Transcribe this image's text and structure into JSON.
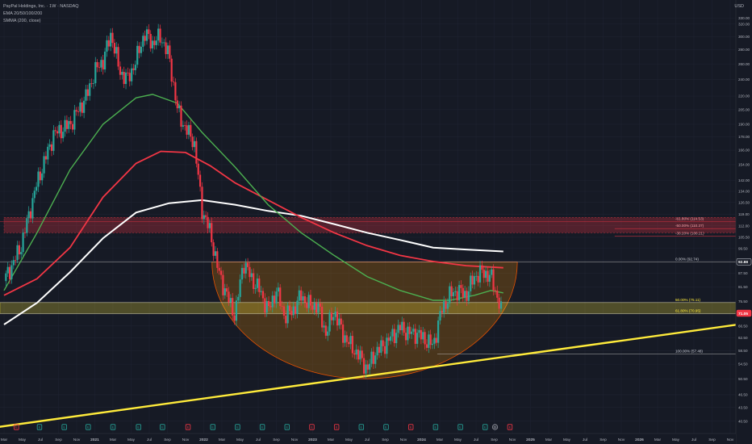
{
  "header": {
    "title": "PayPal Holdings, Inc. · 1W · NASDAQ",
    "indicator_1": "EMA 20/50/100/200",
    "indicator_2": "SMMA (200, close)",
    "currency": "USD"
  },
  "chart_data": {
    "type": "candlestick",
    "title": "PayPal Holdings, Inc. · 1W · NASDAQ",
    "y_scale": "log",
    "ylim": [
      38.8,
      342
    ],
    "y_ticks": [
      330.0,
      320.0,
      300.0,
      280.0,
      260.0,
      240.0,
      220.0,
      205.0,
      190.0,
      178.0,
      166.0,
      154.0,
      142.0,
      134.0,
      126.5,
      119.0,
      112.0,
      105.5,
      99.5,
      93.5,
      87.5,
      81.5,
      75.5,
      70.5,
      66.5,
      62.5,
      58.5,
      54.5,
      50.5,
      46.5,
      43.5,
      40.5
    ],
    "x_ticks": [
      "Mar",
      "May",
      "Jul",
      "Sep",
      "Nov",
      "2021",
      "Mar",
      "May",
      "Jul",
      "Sep",
      "Nov",
      "2022",
      "Mar",
      "May",
      "Jul",
      "Sep",
      "Nov",
      "2023",
      "Mar",
      "May",
      "Jul",
      "Sep",
      "Nov",
      "2024",
      "Mar",
      "May",
      "Jul",
      "Sep",
      "Nov",
      "2025",
      "Mar",
      "May",
      "Jul",
      "Sep",
      "Nov",
      "2026",
      "Mar",
      "May",
      "Jul",
      "Sep",
      "Nov"
    ],
    "x_domain_months": [
      0,
      88
    ],
    "ohlc_anchors": [
      {
        "m": 0,
        "c": 84
      },
      {
        "m": 2,
        "c": 100
      },
      {
        "m": 4,
        "c": 140
      },
      {
        "m": 6,
        "c": 180
      },
      {
        "m": 8,
        "c": 190
      },
      {
        "m": 10,
        "c": 220
      },
      {
        "m": 11,
        "c": 250
      },
      {
        "m": 12,
        "c": 265
      },
      {
        "m": 13,
        "c": 305
      },
      {
        "m": 14,
        "c": 250
      },
      {
        "m": 15,
        "c": 240
      },
      {
        "m": 16,
        "c": 265
      },
      {
        "m": 17,
        "c": 305
      },
      {
        "m": 18,
        "c": 290
      },
      {
        "m": 19,
        "c": 300
      },
      {
        "m": 20,
        "c": 270
      },
      {
        "m": 21,
        "c": 205
      },
      {
        "m": 22,
        "c": 185
      },
      {
        "m": 23,
        "c": 175
      },
      {
        "m": 24,
        "c": 122
      },
      {
        "m": 25,
        "c": 108
      },
      {
        "m": 26,
        "c": 88
      },
      {
        "m": 27,
        "c": 78
      },
      {
        "m": 28,
        "c": 70
      },
      {
        "m": 29,
        "c": 93
      },
      {
        "m": 30,
        "c": 85
      },
      {
        "m": 31,
        "c": 80
      },
      {
        "m": 32,
        "c": 72
      },
      {
        "m": 33,
        "c": 80
      },
      {
        "m": 34,
        "c": 70
      },
      {
        "m": 35,
        "c": 72
      },
      {
        "m": 36,
        "c": 78
      },
      {
        "m": 37,
        "c": 74
      },
      {
        "m": 38,
        "c": 74
      },
      {
        "m": 39,
        "c": 64
      },
      {
        "m": 40,
        "c": 72
      },
      {
        "m": 41,
        "c": 64
      },
      {
        "m": 42,
        "c": 60
      },
      {
        "m": 43,
        "c": 57
      },
      {
        "m": 44,
        "c": 53
      },
      {
        "m": 45,
        "c": 58
      },
      {
        "m": 46,
        "c": 60
      },
      {
        "m": 47,
        "c": 63
      },
      {
        "m": 48,
        "c": 66
      },
      {
        "m": 49,
        "c": 64
      },
      {
        "m": 50,
        "c": 64
      },
      {
        "m": 51,
        "c": 62
      },
      {
        "m": 52,
        "c": 60
      },
      {
        "m": 53,
        "c": 72
      },
      {
        "m": 54,
        "c": 78
      },
      {
        "m": 55,
        "c": 80
      },
      {
        "m": 56,
        "c": 78
      },
      {
        "m": 57,
        "c": 86
      },
      {
        "m": 58,
        "c": 88
      },
      {
        "m": 59,
        "c": 86
      },
      {
        "m": 60,
        "c": 75
      },
      {
        "m": 60.3,
        "c": 71.05
      }
    ],
    "ema_50_green": [
      {
        "m": 0,
        "v": 80
      },
      {
        "m": 4,
        "v": 108
      },
      {
        "m": 8,
        "v": 150
      },
      {
        "m": 12,
        "v": 190
      },
      {
        "m": 16,
        "v": 218
      },
      {
        "m": 18,
        "v": 222
      },
      {
        "m": 21,
        "v": 212
      },
      {
        "m": 24,
        "v": 182
      },
      {
        "m": 28,
        "v": 152
      },
      {
        "m": 32,
        "v": 125
      },
      {
        "m": 36,
        "v": 108
      },
      {
        "m": 40,
        "v": 96
      },
      {
        "m": 44,
        "v": 86
      },
      {
        "m": 48,
        "v": 80
      },
      {
        "m": 52,
        "v": 76
      },
      {
        "m": 54,
        "v": 76
      },
      {
        "m": 57,
        "v": 78
      },
      {
        "m": 59,
        "v": 80
      },
      {
        "m": 60.5,
        "v": 79
      }
    ],
    "ema_200_red": [
      {
        "m": 0,
        "v": 78
      },
      {
        "m": 4,
        "v": 85
      },
      {
        "m": 8,
        "v": 100
      },
      {
        "m": 12,
        "v": 130
      },
      {
        "m": 16,
        "v": 155
      },
      {
        "m": 19,
        "v": 165
      },
      {
        "m": 22,
        "v": 164
      },
      {
        "m": 25,
        "v": 153
      },
      {
        "m": 28,
        "v": 140
      },
      {
        "m": 32,
        "v": 128
      },
      {
        "m": 36,
        "v": 117
      },
      {
        "m": 40,
        "v": 108
      },
      {
        "m": 44,
        "v": 101
      },
      {
        "m": 48,
        "v": 96
      },
      {
        "m": 52,
        "v": 93
      },
      {
        "m": 56,
        "v": 91
      },
      {
        "m": 60.5,
        "v": 90
      }
    ],
    "smma_200_white": [
      {
        "m": 0,
        "v": 67
      },
      {
        "m": 4,
        "v": 75
      },
      {
        "m": 8,
        "v": 88
      },
      {
        "m": 12,
        "v": 105
      },
      {
        "m": 16,
        "v": 120
      },
      {
        "m": 20,
        "v": 126
      },
      {
        "m": 24,
        "v": 128
      },
      {
        "m": 28,
        "v": 125
      },
      {
        "m": 32,
        "v": 121
      },
      {
        "m": 36,
        "v": 118
      },
      {
        "m": 40,
        "v": 113
      },
      {
        "m": 44,
        "v": 108
      },
      {
        "m": 48,
        "v": 104
      },
      {
        "m": 52,
        "v": 100
      },
      {
        "m": 56,
        "v": 99
      },
      {
        "m": 60.5,
        "v": 98
      }
    ],
    "trendline": {
      "from": {
        "m": 0,
        "v": 39.5
      },
      "to": {
        "m": 88,
        "v": 67
      }
    },
    "supply_zone": {
      "from_m": 0,
      "top": 117,
      "bottom": 108
    },
    "fib_levels": [
      {
        "label": "-61.80% (114.53)",
        "value": 114.53
      },
      {
        "label": "-50.00% (110.37)",
        "value": 110.37
      },
      {
        "label": "-38.20% (106.21)",
        "value": 106.21
      },
      {
        "label": "0.00% (92.74)",
        "value": 92.74
      },
      {
        "label": "50.00% (75.11)",
        "value": 75.11
      },
      {
        "label": "61.80% (70.95)",
        "value": 70.95
      },
      {
        "label": "100.00% (57.48)",
        "value": 57.48
      }
    ],
    "fib_zone": {
      "top": 75.11,
      "bottom": 70.95
    },
    "cup": {
      "left_m": 25.2,
      "right_m": 62.2,
      "rim": 92.74,
      "bottom": 50.5
    },
    "price_labels": [
      {
        "text": "92.88",
        "value": 92.88,
        "color": "#1e222d"
      },
      {
        "text": "71.05",
        "value": 71.05,
        "color": "#f23645"
      }
    ],
    "event_markers": [
      {
        "m": 1.5,
        "kind": "E",
        "color": "#f23645"
      },
      {
        "m": 4.3,
        "kind": "E",
        "color": "#26a69a"
      },
      {
        "m": 7.3,
        "kind": "E",
        "color": "#26a69a"
      },
      {
        "m": 10.2,
        "kind": "E",
        "color": "#26a69a"
      },
      {
        "m": 13.2,
        "kind": "E",
        "color": "#26a69a"
      },
      {
        "m": 16.3,
        "kind": "E",
        "color": "#26a69a"
      },
      {
        "m": 19.2,
        "kind": "E",
        "color": "#26a69a"
      },
      {
        "m": 22.3,
        "kind": "E",
        "color": "#f23645"
      },
      {
        "m": 25.3,
        "kind": "E",
        "color": "#26a69a"
      },
      {
        "m": 28.3,
        "kind": "E",
        "color": "#26a69a"
      },
      {
        "m": 31.3,
        "kind": "E",
        "color": "#26a69a"
      },
      {
        "m": 34.3,
        "kind": "E",
        "color": "#26a69a"
      },
      {
        "m": 37.3,
        "kind": "E",
        "color": "#f23645"
      },
      {
        "m": 40.3,
        "kind": "E",
        "color": "#f23645"
      },
      {
        "m": 43.3,
        "kind": "E",
        "color": "#26a69a"
      },
      {
        "m": 46.3,
        "kind": "E",
        "color": "#26a69a"
      },
      {
        "m": 49.3,
        "kind": "E",
        "color": "#f23645"
      },
      {
        "m": 52.3,
        "kind": "E",
        "color": "#26a69a"
      },
      {
        "m": 55.3,
        "kind": "E",
        "color": "#26a69a"
      },
      {
        "m": 58.3,
        "kind": "E",
        "color": "#26a69a"
      },
      {
        "m": 59.5,
        "kind": "D",
        "color": "#9598a1"
      },
      {
        "m": 61.3,
        "kind": "E",
        "color": "#f23645"
      }
    ]
  },
  "colors": {
    "background": "#161a25",
    "up": "#26a69a",
    "down": "#f23645",
    "ema_green": "#4caf50",
    "ema_red": "#f23645",
    "smma": "#ffffff",
    "trendline": "#ffeb3b",
    "axis_text": "#b2b5be"
  }
}
